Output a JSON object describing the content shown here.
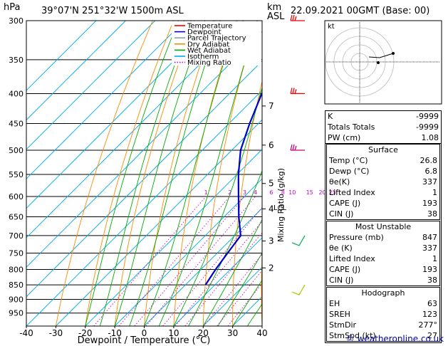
{
  "header": {
    "hpa_unit": "hPa",
    "location": "39°07'N  251°32'W  1500m  ASL",
    "km_label": "km",
    "asl_label": "ASL",
    "datetime": "22.09.2021  00GMT  (Base: 00)"
  },
  "chart_data": {
    "type": "skew-t",
    "xlabel": "Dewpoint / Temperature (°C)",
    "ylabel_right": "Mixing Ratio (g/kg)",
    "x_ticks": [
      -40,
      -30,
      -20,
      -10,
      0,
      10,
      20,
      30,
      40
    ],
    "pressure_levels": [
      300,
      350,
      400,
      450,
      500,
      550,
      600,
      650,
      700,
      750,
      800,
      850,
      900,
      950
    ],
    "xlim": [
      -40,
      40
    ],
    "ylim_hpa": [
      1000,
      300
    ],
    "skew_deg_per_decade": 90,
    "km_ticks": [
      {
        "label": "7",
        "p": 420
      },
      {
        "label": "6",
        "p": 490
      },
      {
        "label": "5",
        "p": 570
      },
      {
        "label": "4",
        "p": 630
      },
      {
        "label": "3",
        "p": 715
      },
      {
        "label": "2",
        "p": 795
      }
    ],
    "lcl": {
      "label": "LCL",
      "p": 628
    },
    "mixing_ratio_labels": [
      {
        "label": "1",
        "w": 1
      },
      {
        "label": "2",
        "w": 2
      },
      {
        "label": "3",
        "w": 3
      },
      {
        "label": "4",
        "w": 4
      },
      {
        "label": "6",
        "w": 6
      },
      {
        "label": "8",
        "w": 8
      },
      {
        "label": "10",
        "w": 10
      },
      {
        "label": "15",
        "w": 15
      },
      {
        "label": "20",
        "w": 20
      },
      {
        "label": "25",
        "w": 25
      }
    ],
    "legend": [
      {
        "name": "Temperature",
        "color": "#ee0000",
        "style": "solid"
      },
      {
        "name": "Dewpoint",
        "color": "#0000cc",
        "style": "solid"
      },
      {
        "name": "Parcel Trajectory",
        "color": "#999999",
        "style": "solid"
      },
      {
        "name": "Dry Adiabat",
        "color": "#ff8800",
        "style": "solid"
      },
      {
        "name": "Wet Adiabat",
        "color": "#00aa00",
        "style": "solid"
      },
      {
        "name": "Isotherm",
        "color": "#00aaee",
        "style": "solid"
      },
      {
        "name": "Mixing Ratio",
        "color": "#cc00cc",
        "style": "dotted"
      }
    ],
    "series": [
      {
        "name": "Temperature",
        "color": "#ee0000",
        "points": [
          [
            850,
            26.8
          ],
          [
            800,
            22
          ],
          [
            750,
            17.5
          ],
          [
            700,
            12.5
          ],
          [
            650,
            9.5
          ],
          [
            600,
            7.5
          ],
          [
            550,
            3.5
          ],
          [
            500,
            -1.5
          ],
          [
            450,
            -7
          ],
          [
            400,
            -13.5
          ],
          [
            350,
            -21
          ],
          [
            300,
            -31
          ]
        ]
      },
      {
        "name": "Dewpoint",
        "color": "#0000cc",
        "points": [
          [
            850,
            6.8
          ],
          [
            800,
            5
          ],
          [
            750,
            3.5
          ],
          [
            700,
            2
          ],
          [
            650,
            -5
          ],
          [
            600,
            -12
          ],
          [
            550,
            -19.5
          ],
          [
            500,
            -27
          ],
          [
            450,
            -33
          ],
          [
            400,
            -39
          ],
          [
            350,
            -44
          ],
          [
            300,
            -52
          ]
        ]
      },
      {
        "name": "Parcel Trajectory",
        "color": "#999999",
        "points": [
          [
            850,
            26.8
          ],
          [
            750,
            17
          ],
          [
            700,
            12
          ],
          [
            650,
            8
          ],
          [
            628,
            6.5
          ],
          [
            600,
            5.3
          ],
          [
            550,
            2.5
          ],
          [
            500,
            -1.3
          ],
          [
            450,
            -5.5
          ],
          [
            400,
            -11
          ],
          [
            350,
            -17.5
          ],
          [
            300,
            -26
          ]
        ]
      }
    ],
    "wind_barbs_colors": [
      "#ee0000",
      "#ee0000",
      "#cc0077",
      "#00aa55",
      "#aacc00"
    ],
    "hodograph": {
      "label": "kt",
      "rings_kt": [
        10,
        20,
        30,
        40
      ]
    }
  },
  "indices": {
    "top": [
      {
        "label": "K",
        "value": "-9999"
      },
      {
        "label": "Totals Totals",
        "value": "-9999"
      },
      {
        "label": "PW (cm)",
        "value": "1.08"
      }
    ],
    "surface": {
      "title": "Surface",
      "rows": [
        {
          "label": "Temp (°C)",
          "value": "26.8"
        },
        {
          "label": "Dewp (°C)",
          "value": "6.8"
        },
        {
          "label": "θe(K)",
          "value": "337"
        },
        {
          "label": "Lifted Index",
          "value": "1"
        },
        {
          "label": "CAPE (J)",
          "value": "193"
        },
        {
          "label": "CIN (J)",
          "value": "38"
        }
      ]
    },
    "most_unstable": {
      "title": "Most Unstable",
      "rows": [
        {
          "label": "Pressure (mb)",
          "value": "847"
        },
        {
          "label": "θe (K)",
          "value": "337"
        },
        {
          "label": "Lifted Index",
          "value": "1"
        },
        {
          "label": "CAPE (J)",
          "value": "193"
        },
        {
          "label": "CIN (J)",
          "value": "38"
        }
      ]
    },
    "hodograph": {
      "title": "Hodograph",
      "rows": [
        {
          "label": "EH",
          "value": "63"
        },
        {
          "label": "SREH",
          "value": "123"
        },
        {
          "label": "StmDir",
          "value": "277°"
        },
        {
          "label": "StmSpd (kt)",
          "value": "27"
        }
      ]
    }
  },
  "credit": "© weatheronline.co.uk"
}
